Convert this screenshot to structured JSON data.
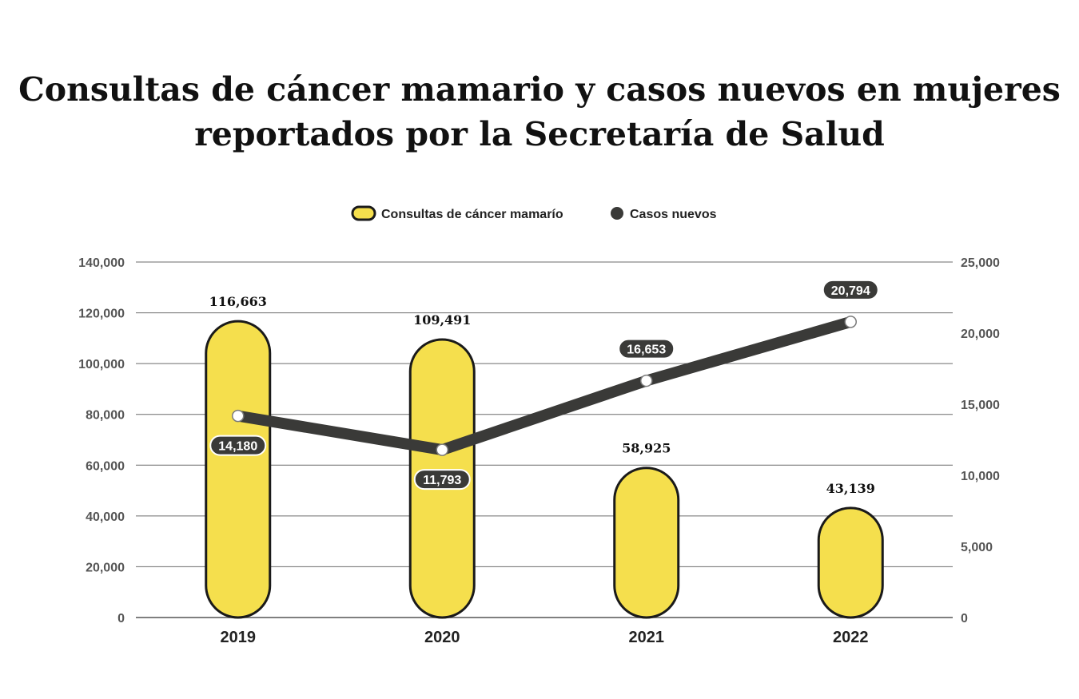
{
  "chart_data": {
    "type": "bar",
    "title": "Consultas de cáncer mamario y casos nuevos en mujeres reportados por la Secretaría de Salud",
    "categories": [
      "2019",
      "2020",
      "2021",
      "2022"
    ],
    "series": [
      {
        "name": "Consultas de cáncer mamarío",
        "type": "bar",
        "axis": "left",
        "values": [
          116663,
          109491,
          58925,
          43139
        ],
        "labels": [
          "116,663",
          "109,491",
          "58,925",
          "43,139"
        ],
        "color": "#F5DF4D"
      },
      {
        "name": "Casos nuevos",
        "type": "line",
        "axis": "right",
        "values": [
          14180,
          11793,
          16653,
          20794
        ],
        "labels": [
          "14,180",
          "11,793",
          "16,653",
          "20,794"
        ],
        "color": "#3A3A38"
      }
    ],
    "y_left": {
      "ylim": [
        0,
        140000
      ],
      "ticks": [
        0,
        20000,
        40000,
        60000,
        80000,
        100000,
        120000,
        140000
      ],
      "tick_labels": [
        "0",
        "20,000",
        "40,000",
        "60,000",
        "80,000",
        "100,000",
        "120,000",
        "140,000"
      ]
    },
    "y_right": {
      "ylim": [
        0,
        25000
      ],
      "ticks": [
        0,
        5000,
        10000,
        15000,
        20000,
        25000
      ],
      "tick_labels": [
        "0",
        "5,000",
        "10,000",
        "15,000",
        "20,000",
        "25,000"
      ]
    },
    "grid": true,
    "legend_position": "top-center"
  }
}
